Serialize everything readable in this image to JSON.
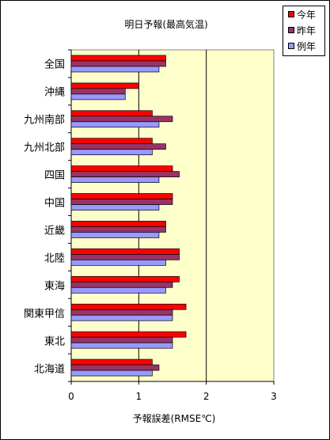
{
  "chart_data": {
    "type": "bar",
    "orientation": "horizontal",
    "title": "明日予報(最高気温)",
    "xlabel": "予報誤差(RMSE℃)",
    "ylabel": "",
    "xlim": [
      0,
      3
    ],
    "xticks": [
      "0",
      "1",
      "2",
      "3"
    ],
    "grid": "vertical-major",
    "legend_position": "top-right",
    "categories": [
      "全国",
      "沖縄",
      "九州南部",
      "九州北部",
      "四国",
      "中国",
      "近畿",
      "北陸",
      "東海",
      "関東甲信",
      "東北",
      "北海道"
    ],
    "series": [
      {
        "name": "今年",
        "color": "#ff0000",
        "values": [
          1.4,
          1.0,
          1.2,
          1.2,
          1.5,
          1.5,
          1.4,
          1.6,
          1.6,
          1.7,
          1.7,
          1.2
        ]
      },
      {
        "name": "昨年",
        "color": "#993366",
        "values": [
          1.4,
          0.8,
          1.5,
          1.4,
          1.6,
          1.5,
          1.4,
          1.6,
          1.5,
          1.5,
          1.5,
          1.3
        ]
      },
      {
        "name": "例年",
        "color": "#9999ff",
        "values": [
          1.3,
          0.8,
          1.3,
          1.2,
          1.3,
          1.3,
          1.3,
          1.4,
          1.4,
          1.5,
          1.5,
          1.2
        ]
      }
    ],
    "plot_background": "#ffffcc"
  }
}
